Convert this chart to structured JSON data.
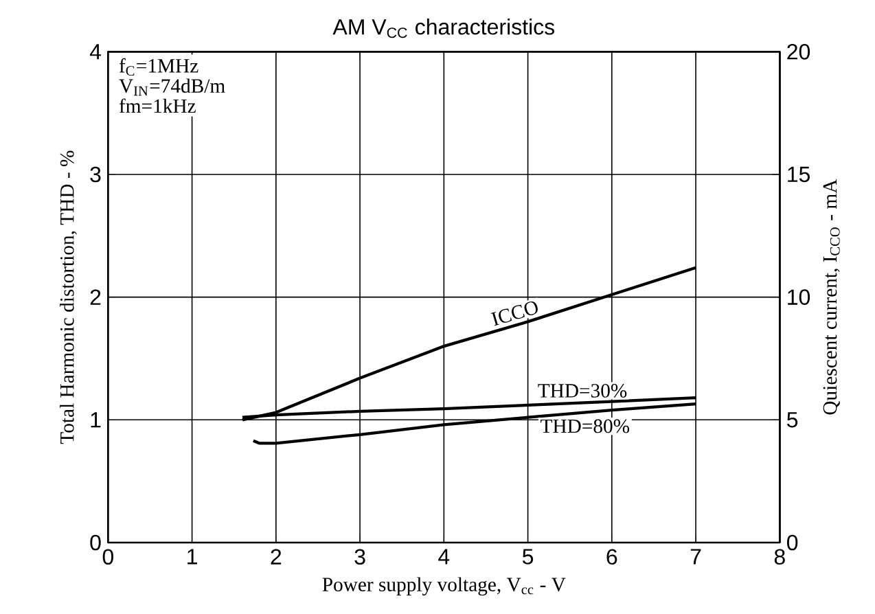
{
  "chart_data": {
    "type": "line",
    "title": "AM V$_{CC}$ characteristics",
    "xlabel": "Power supply voltage, V$_{cc}$ - V",
    "ylabel": "Total Harmonic distortion, THD - %",
    "y2label": "Quiescent current, I$_{CCO}$ - mA",
    "annotations": [
      "f$_{C}$=1MHz",
      "V$_{IN}$=74dB/m",
      "fm=1kHz"
    ],
    "xlim": [
      0,
      8
    ],
    "xticks": [
      0,
      1,
      2,
      3,
      4,
      5,
      6,
      7,
      8
    ],
    "ylim": [
      0,
      4
    ],
    "yticks": [
      0,
      1,
      2,
      3,
      4
    ],
    "y2lim": [
      0,
      20
    ],
    "y2ticks": [
      0,
      5,
      10,
      15,
      20
    ],
    "grid": true,
    "marker": "none",
    "line_style": "solid",
    "series": [
      {
        "name": "ICCO",
        "color": "#000000",
        "axis": "y2",
        "x": [
          1.6,
          2,
          3,
          4,
          5,
          6,
          7
        ],
        "values": [
          5.0,
          5.3,
          6.7,
          8.0,
          9.0,
          10.1,
          11.2
        ]
      },
      {
        "name": "THD=30%",
        "color": "#000000",
        "x": [
          1.6,
          2,
          3,
          4,
          5,
          6,
          7
        ],
        "values": [
          1.02,
          1.04,
          1.07,
          1.09,
          1.12,
          1.15,
          1.18
        ]
      },
      {
        "name": "THD=80%",
        "color": "#000000",
        "x": [
          1.73,
          1.8,
          2,
          3,
          4,
          5,
          6,
          7
        ],
        "values": [
          0.83,
          0.81,
          0.81,
          0.88,
          0.96,
          1.02,
          1.08,
          1.13
        ]
      }
    ]
  }
}
